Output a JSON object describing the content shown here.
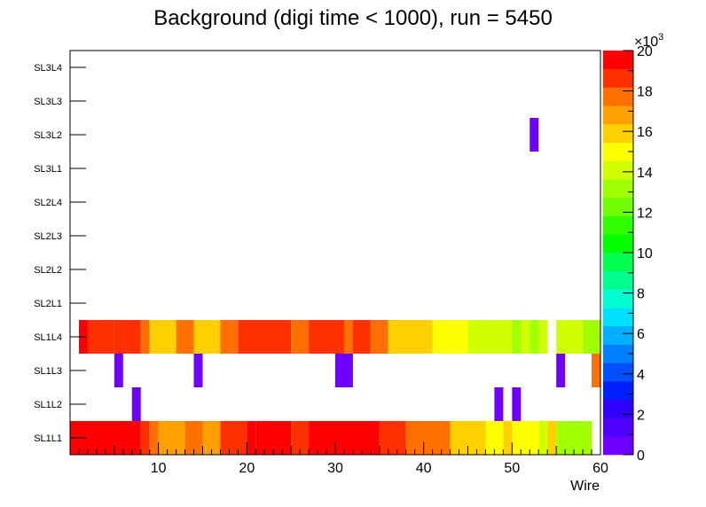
{
  "chart_data": {
    "type": "heatmap",
    "title": "Background (digi time < 1000), run = 5450",
    "xlabel": "Wire",
    "ylabel": "",
    "xlim": [
      0,
      60
    ],
    "x_ticks": [
      "10",
      "20",
      "30",
      "40",
      "50",
      "60"
    ],
    "y_categories": [
      "SL1L1",
      "SL1L2",
      "SL1L3",
      "SL1L4",
      "SL2L1",
      "SL2L2",
      "SL2L3",
      "SL2L4",
      "SL3L1",
      "SL3L2",
      "SL3L3",
      "SL3L4"
    ],
    "z_range": [
      0,
      20000
    ],
    "z_multiplier": "×10",
    "z_multiplier_exp": "3",
    "z_ticks": [
      "0",
      "2",
      "4",
      "6",
      "8",
      "10",
      "12",
      "14",
      "16",
      "18",
      "20"
    ],
    "palette": [
      "#6f00ff",
      "#4f00ff",
      "#2f00ff",
      "#0020ff",
      "#0050ff",
      "#0080ff",
      "#00b0ff",
      "#00e0ff",
      "#00ffd0",
      "#00ff90",
      "#00ff50",
      "#00ff00",
      "#30ff00",
      "#70ff00",
      "#a0ff00",
      "#d0ff00",
      "#ffff00",
      "#ffd000",
      "#ffa000",
      "#ff7000",
      "#ff3000",
      "#ff0000"
    ],
    "rows": {
      "SL1L1": [
        [
          1,
          8,
          20000
        ],
        [
          9,
          9,
          19000
        ],
        [
          10,
          10,
          18000
        ],
        [
          11,
          13,
          17000
        ],
        [
          14,
          15,
          18000
        ],
        [
          16,
          17,
          17000
        ],
        [
          18,
          20,
          18500
        ],
        [
          21,
          21,
          19500
        ],
        [
          22,
          25,
          20000
        ],
        [
          26,
          27,
          18500
        ],
        [
          28,
          35,
          19500
        ],
        [
          36,
          38,
          18500
        ],
        [
          39,
          43,
          17500
        ],
        [
          44,
          47,
          16000
        ],
        [
          48,
          49,
          15200
        ],
        [
          50,
          50,
          16200
        ],
        [
          51,
          53,
          15200
        ],
        [
          54,
          54,
          14500
        ],
        [
          55,
          55,
          15600
        ],
        [
          56,
          59,
          13500
        ]
      ],
      "SL1L2": [
        [
          8,
          8,
          800
        ],
        [
          49,
          49,
          800
        ],
        [
          51,
          51,
          800
        ]
      ],
      "SL1L3": [
        [
          6,
          6,
          800
        ],
        [
          15,
          15,
          800
        ],
        [
          31,
          32,
          800
        ],
        [
          56,
          56,
          800
        ],
        [
          60,
          60,
          17500
        ]
      ],
      "SL1L4": [
        [
          2,
          2,
          19500
        ],
        [
          3,
          5,
          18500
        ],
        [
          6,
          8,
          19000
        ],
        [
          9,
          9,
          17500
        ],
        [
          10,
          12,
          16200
        ],
        [
          13,
          14,
          17500
        ],
        [
          15,
          17,
          16200
        ],
        [
          18,
          19,
          17500
        ],
        [
          20,
          25,
          18500
        ],
        [
          26,
          27,
          17500
        ],
        [
          28,
          31,
          18500
        ],
        [
          32,
          32,
          17500
        ],
        [
          33,
          34,
          18500
        ],
        [
          35,
          36,
          17500
        ],
        [
          37,
          41,
          16200
        ],
        [
          42,
          45,
          15300
        ],
        [
          46,
          50,
          14200
        ],
        [
          51,
          51,
          13600
        ],
        [
          52,
          52,
          14200
        ],
        [
          53,
          53,
          13600
        ],
        [
          54,
          54,
          14200
        ],
        [
          56,
          58,
          14200
        ],
        [
          59,
          60,
          13500
        ]
      ],
      "SL3L2": [
        [
          53,
          53,
          800
        ]
      ]
    }
  }
}
